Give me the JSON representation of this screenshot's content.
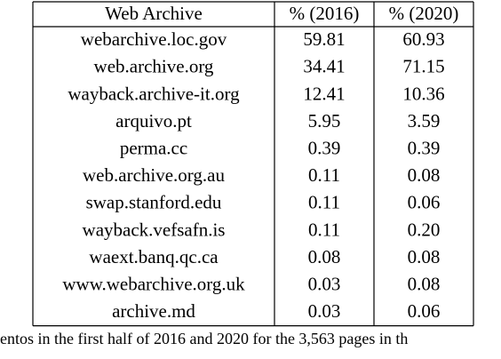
{
  "table": {
    "header": [
      "Web Archive",
      "% (2016)",
      "% (2020)"
    ],
    "rows": [
      [
        "webarchive.loc.gov",
        "59.81",
        "60.93"
      ],
      [
        "web.archive.org",
        "34.41",
        "71.15"
      ],
      [
        "wayback.archive-it.org",
        "12.41",
        "10.36"
      ],
      [
        "arquivo.pt",
        "5.95",
        "3.59"
      ],
      [
        "perma.cc",
        "0.39",
        "0.39"
      ],
      [
        "web.archive.org.au",
        "0.11",
        "0.08"
      ],
      [
        "swap.stanford.edu",
        "0.11",
        "0.06"
      ],
      [
        "wayback.vefsafn.is",
        "0.11",
        "0.20"
      ],
      [
        "waext.banq.qc.ca",
        "0.08",
        "0.08"
      ],
      [
        "www.webarchive.org.uk",
        "0.03",
        "0.08"
      ],
      [
        "archive.md",
        "0.03",
        "0.06"
      ]
    ]
  },
  "caption": "entos in the first half of 2016 and 2020 for the 3,563 pages in th"
}
